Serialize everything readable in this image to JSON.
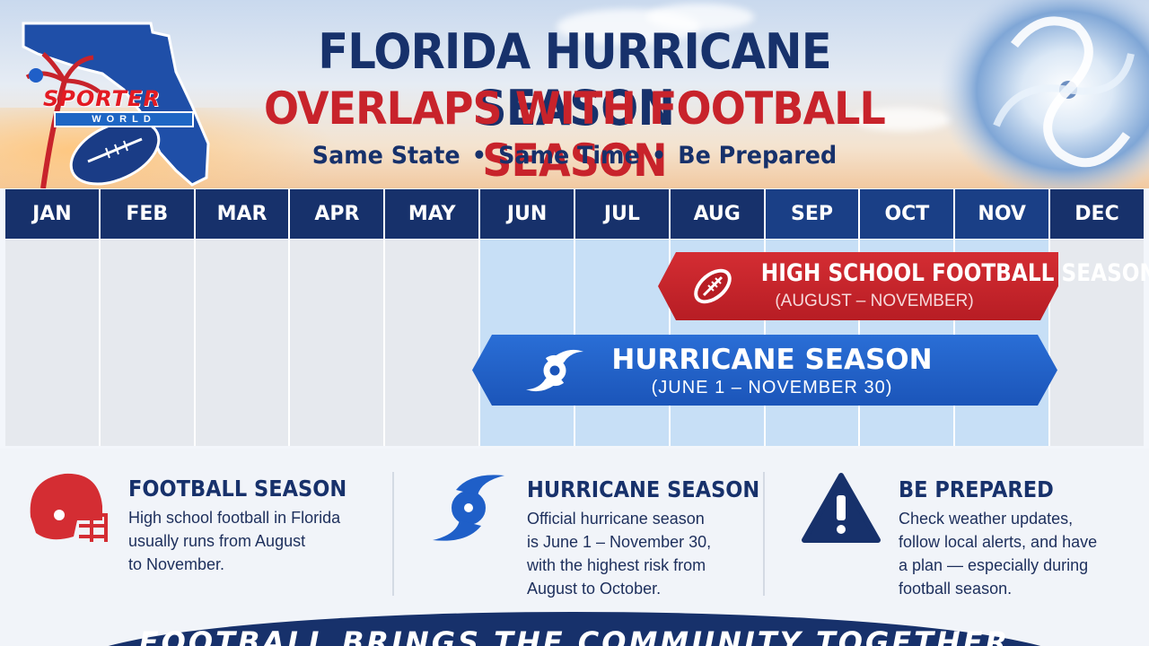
{
  "header": {
    "title_line1": "FLORIDA HURRICANE SEASON",
    "title_line2": "OVERLAPS WITH FOOTBALL SEASON",
    "tagline_parts": [
      "Same State",
      "Same Time",
      "Be Prepared"
    ],
    "tagline_separator": "•",
    "logo": {
      "brand": "SPORTER",
      "sub": "WORLD"
    }
  },
  "calendar": {
    "months": [
      "JAN",
      "FEB",
      "MAR",
      "APR",
      "MAY",
      "JUN",
      "JUL",
      "AUG",
      "SEP",
      "OCT",
      "NOV",
      "DEC"
    ],
    "hurricane_months_start": 5,
    "hurricane_months_end": 10,
    "football_bar": {
      "title": "HIGH SCHOOL FOOTBALL SEASON",
      "subtitle": "(AUGUST – NOVEMBER)",
      "color": "#c8232b"
    },
    "hurricane_bar": {
      "title": "HURRICANE SEASON",
      "subtitle": "(JUNE 1 – NOVEMBER 30)",
      "color": "#1f5fc8"
    }
  },
  "panels": [
    {
      "icon": "football-helmet-icon",
      "title": "FOOTBALL SEASON",
      "lines": [
        "High school football in Florida",
        "usually runs from August",
        "to November."
      ]
    },
    {
      "icon": "hurricane-icon",
      "title": "HURRICANE SEASON",
      "lines": [
        "Official hurricane season",
        "is June 1 – November 30,",
        "with the highest risk from",
        "August to October."
      ]
    },
    {
      "icon": "warning-icon",
      "title": "BE PREPARED",
      "lines": [
        "Check weather updates,",
        "follow local alerts, and have",
        "a plan — especially during",
        "football season."
      ]
    }
  ],
  "banner": {
    "text": "FOOTBALL BRINGS THE COMMUNITY TOGETHER"
  },
  "colors": {
    "navy": "#17316b",
    "red": "#c8232b",
    "blue": "#1f5fc8",
    "highlight_column": "#c7dff6",
    "neutral_column": "#e6e9ee"
  }
}
